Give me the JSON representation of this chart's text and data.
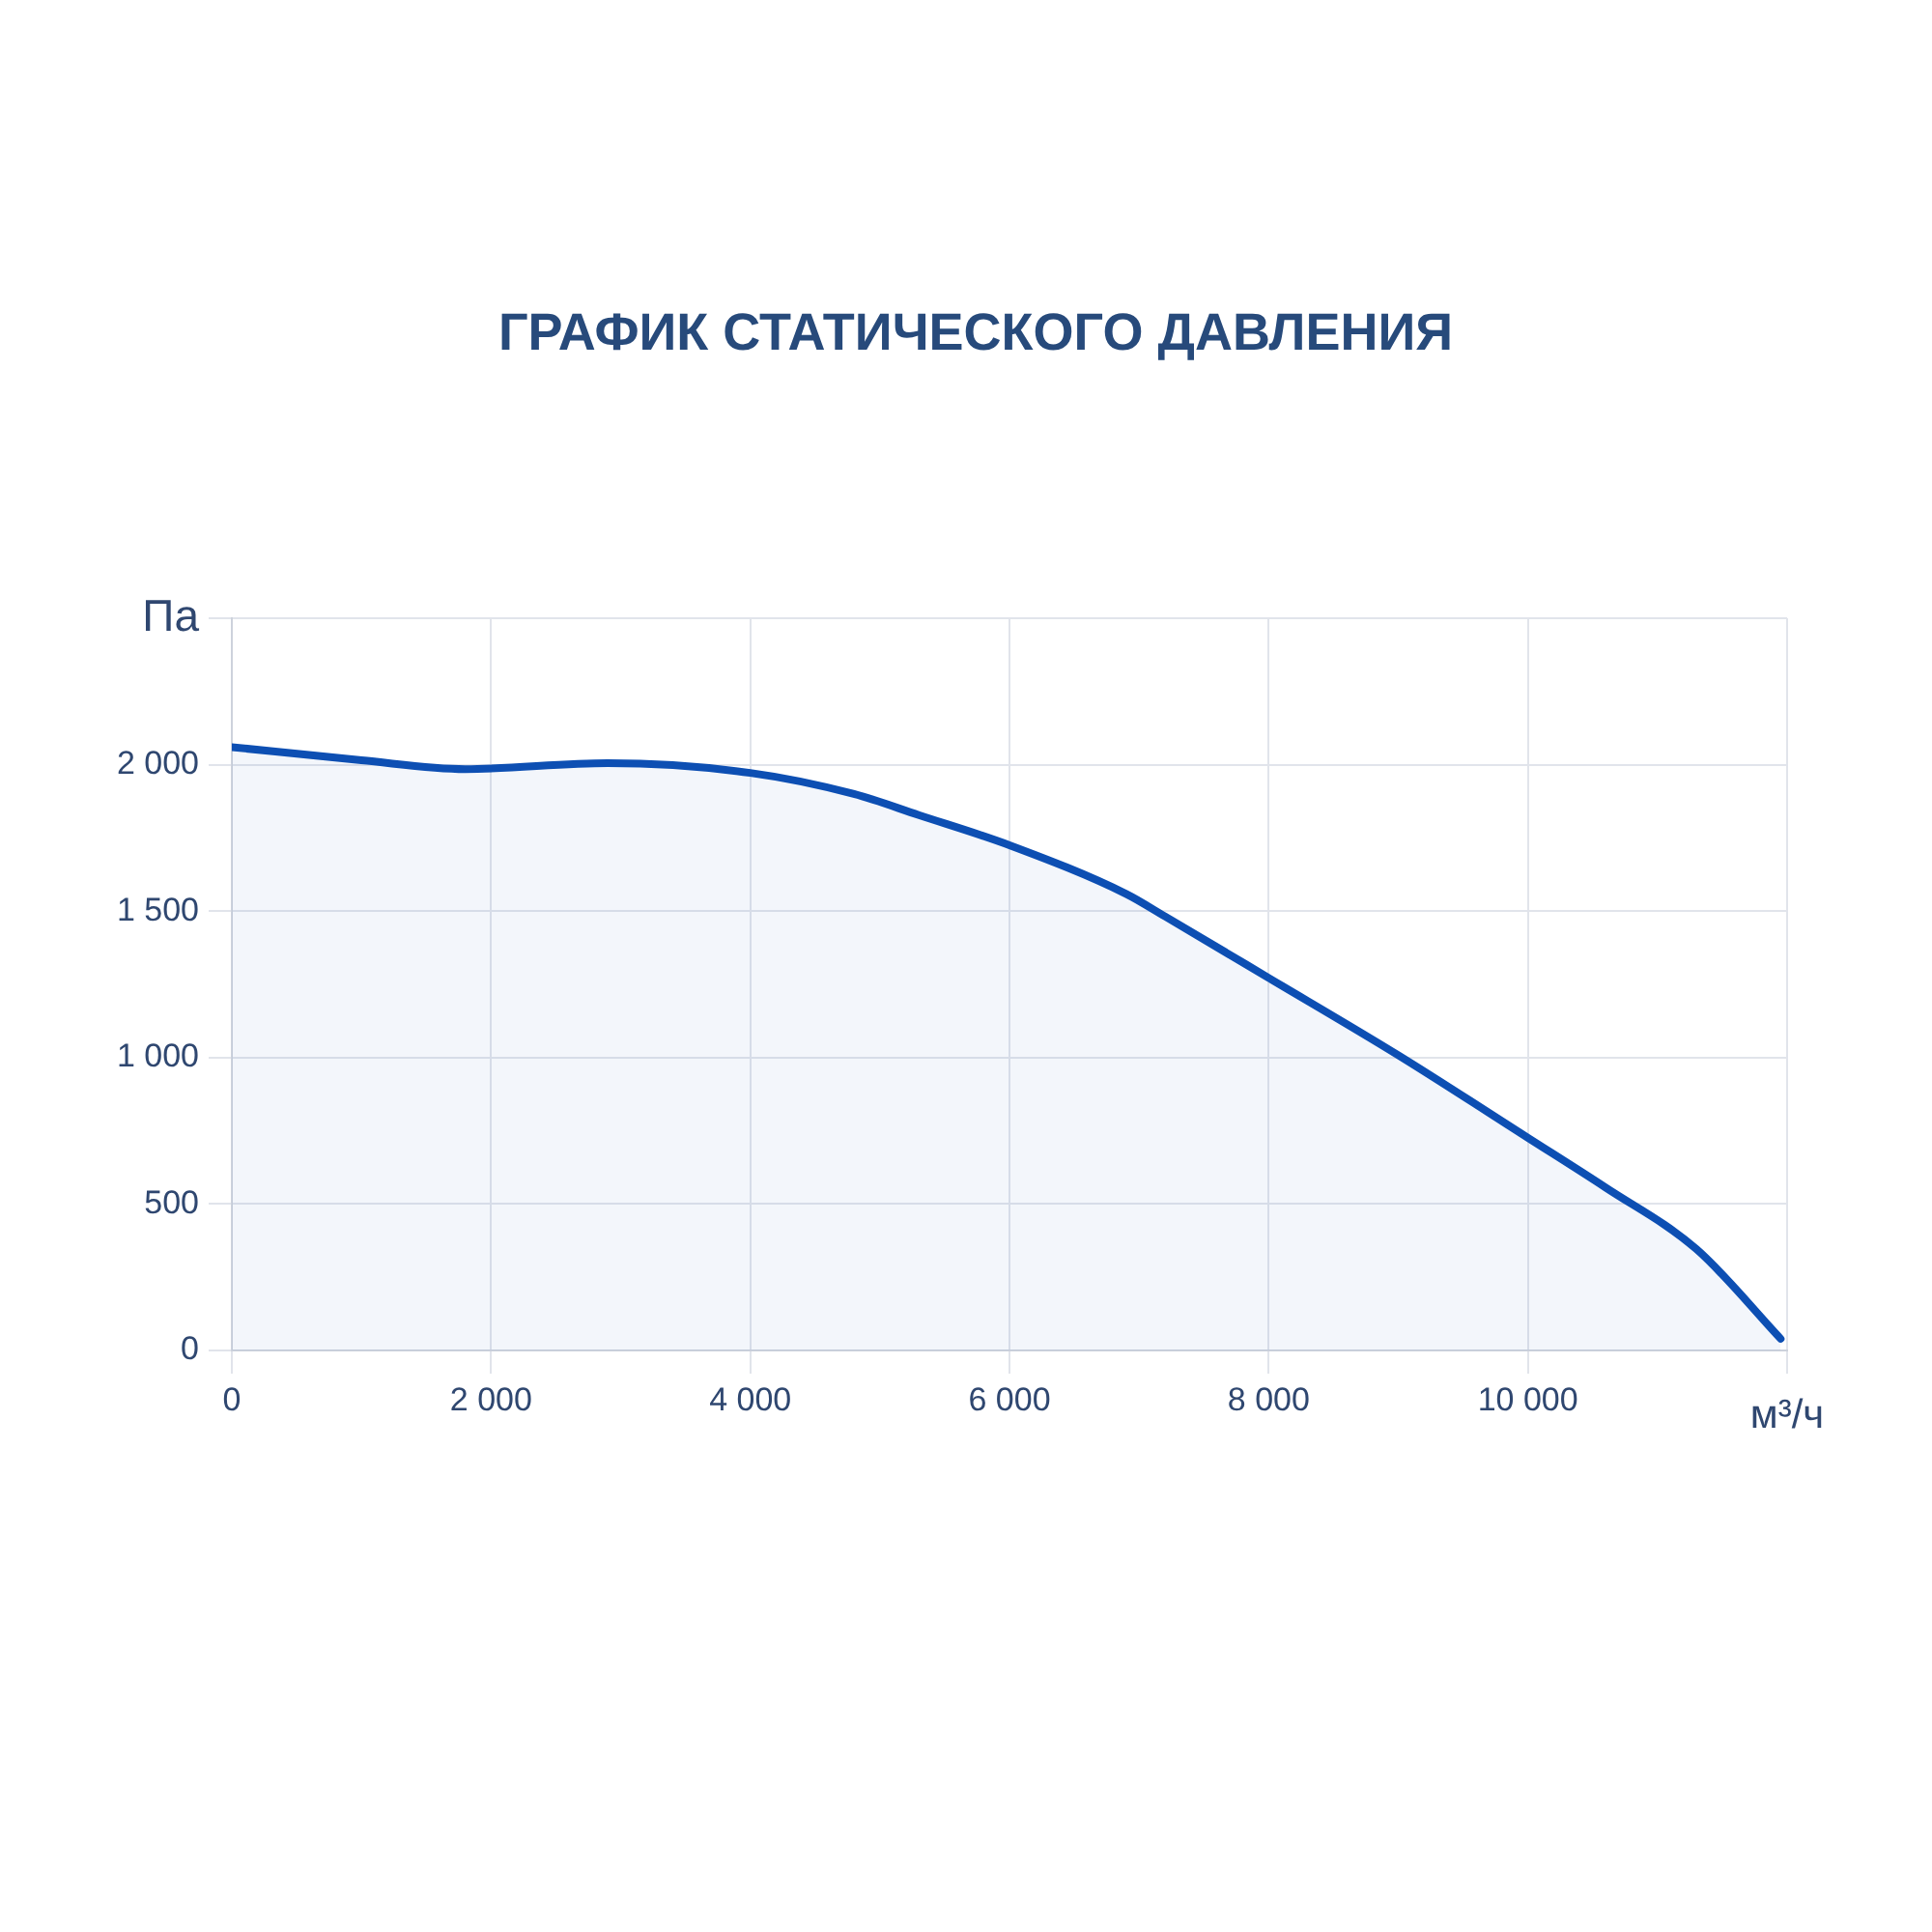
{
  "chart_data": {
    "type": "area",
    "title": "ГРАФИК СТАТИЧЕСКОГО ДАВЛЕНИЯ",
    "xlabel": "м³/ч",
    "ylabel": "Па",
    "x": [
      0,
      1000,
      1800,
      2900,
      4000,
      4800,
      5300,
      6000,
      6900,
      7200,
      8000,
      9000,
      10000,
      10600,
      11300,
      11950
    ],
    "series": [
      {
        "color": "#0d4fb3",
        "values": [
          2060,
          2015,
          1985,
          2005,
          1972,
          1900,
          1828,
          1725,
          1559,
          1482,
          1272,
          1008,
          726,
          556,
          346,
          40
        ]
      }
    ],
    "xlim": [
      0,
      12000
    ],
    "ylim": [
      0,
      2500
    ],
    "xticks": [
      0,
      {
        "value": 2000,
        "label": "2 000"
      },
      {
        "value": 4000,
        "label": "4 000"
      },
      {
        "value": 6000,
        "label": "6 000"
      },
      {
        "value": 8000,
        "label": "8 000"
      },
      {
        "value": 10000,
        "label": "10 000"
      },
      {
        "value": 12000,
        "label": null
      }
    ],
    "yticks": [
      0,
      500,
      {
        "value": 1000,
        "label": "1 000"
      },
      {
        "value": 1500,
        "label": "1 500"
      },
      {
        "value": 2000,
        "label": "2 000"
      },
      {
        "value": 2500,
        "label": null
      }
    ],
    "grid": true,
    "legend": false,
    "marker": "none",
    "line_style": "solid"
  }
}
